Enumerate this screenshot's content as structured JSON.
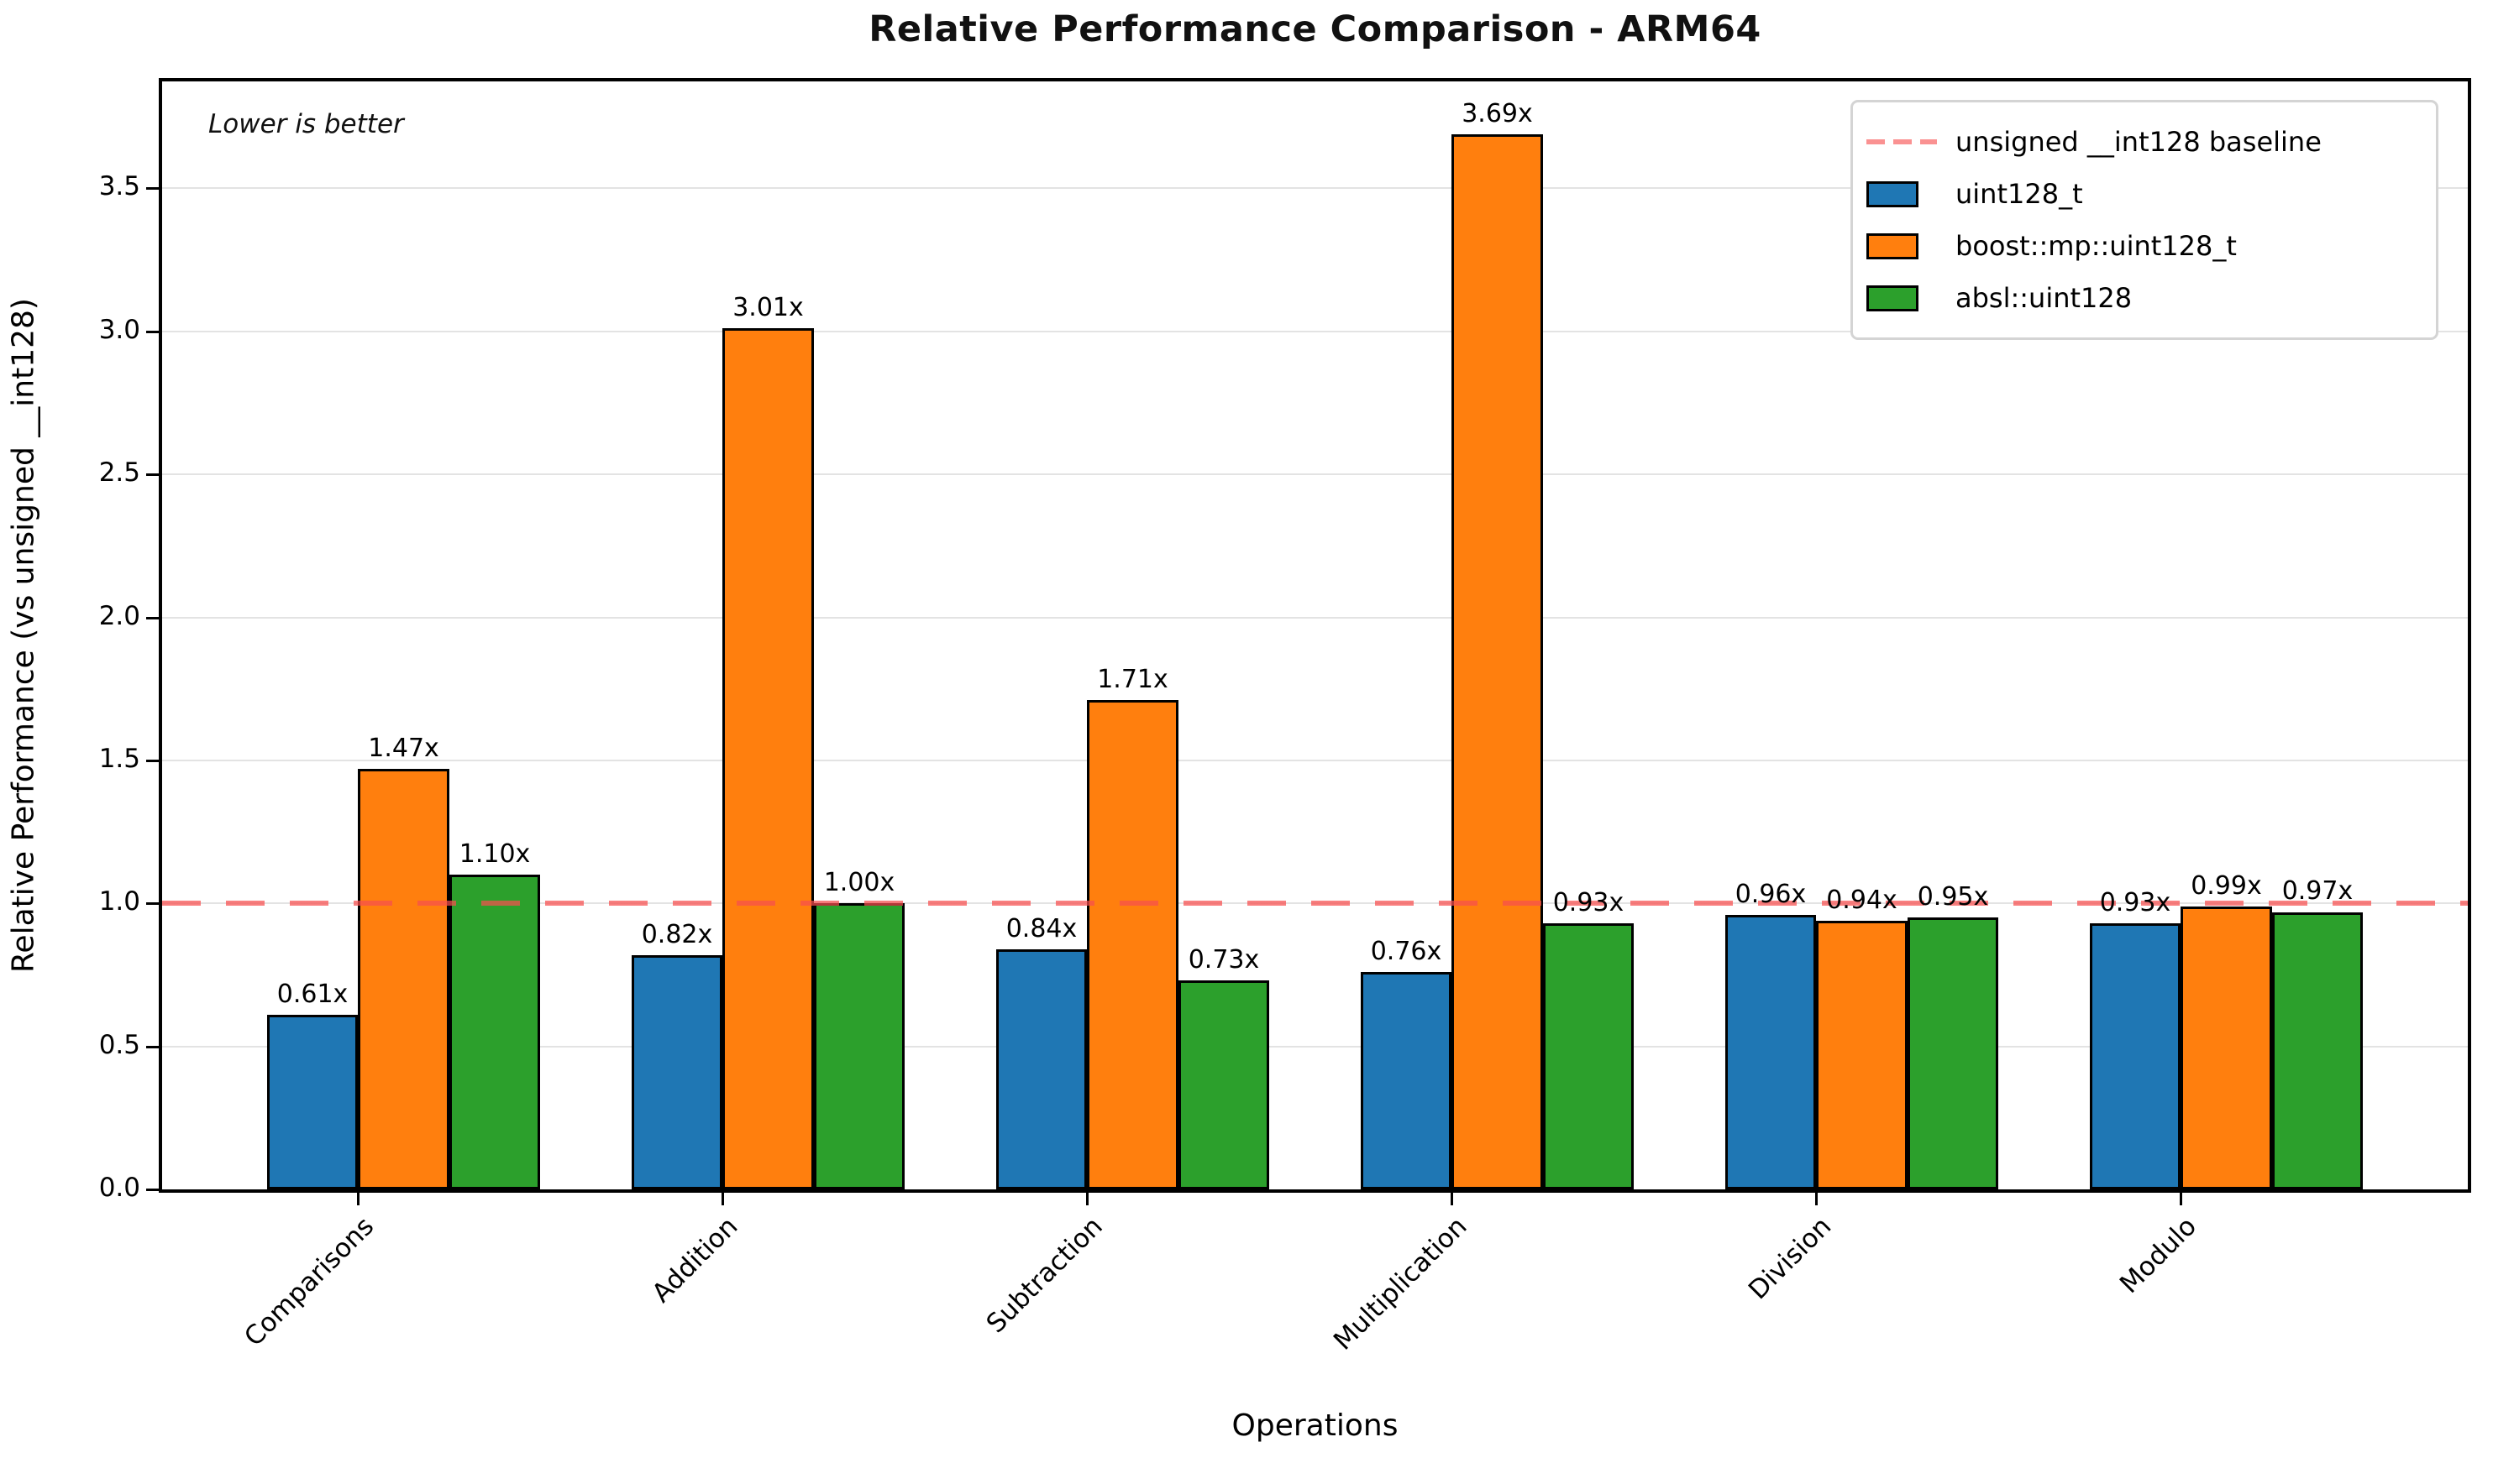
{
  "chart_data": {
    "type": "bar",
    "title": "Relative Performance Comparison - ARM64",
    "xlabel": "Operations",
    "ylabel": "Relative Performance (vs unsigned __int128)",
    "annotation": "Lower is better",
    "categories": [
      "Comparisons",
      "Addition",
      "Subtraction",
      "Multiplication",
      "Division",
      "Modulo"
    ],
    "series": [
      {
        "name": "uint128_t",
        "color": "#1f77b4",
        "values": [
          0.61,
          0.82,
          0.84,
          0.76,
          0.96,
          0.93
        ]
      },
      {
        "name": "boost::mp::uint128_t",
        "color": "#ff7f0e",
        "values": [
          1.47,
          3.01,
          1.71,
          3.69,
          0.94,
          0.99
        ]
      },
      {
        "name": "absl::uint128",
        "color": "#2ca02c",
        "values": [
          1.1,
          1.0,
          0.73,
          0.93,
          0.95,
          0.97
        ]
      }
    ],
    "baseline": {
      "value": 1.0,
      "label": "unsigned __int128 baseline",
      "color": "#f87e7e",
      "style": "dashed"
    },
    "bar_label_suffix": "x",
    "yticks": [
      "0.0",
      "0.5",
      "1.0",
      "1.5",
      "2.0",
      "2.5",
      "3.0",
      "3.5"
    ],
    "ylim": [
      0,
      3.874
    ],
    "grid": "horizontal",
    "legend_position": "upper right"
  }
}
